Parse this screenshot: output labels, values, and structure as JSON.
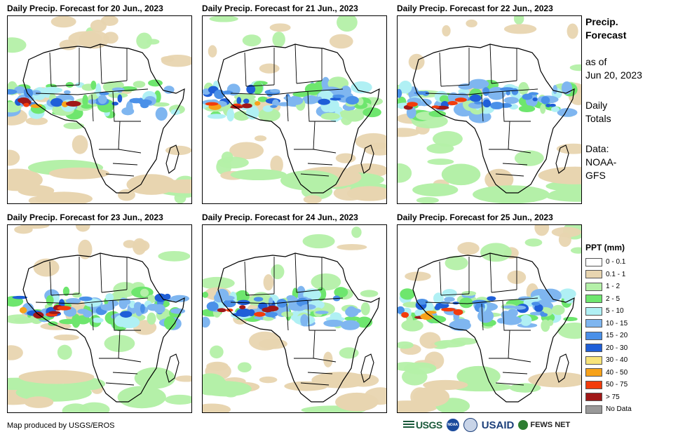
{
  "panels": [
    {
      "title": "Daily Precip. Forecast for 20 Jun., 2023",
      "variant": 0
    },
    {
      "title": "Daily Precip. Forecast for 21 Jun., 2023",
      "variant": 1
    },
    {
      "title": "Daily Precip. Forecast for 22 Jun., 2023",
      "variant": 2
    },
    {
      "title": "Daily Precip. Forecast for 23 Jun., 2023",
      "variant": 3
    },
    {
      "title": "Daily Precip. Forecast for 24 Jun., 2023",
      "variant": 4
    },
    {
      "title": "Daily Precip. Forecast for 25 Jun., 2023",
      "variant": 5
    }
  ],
  "side": {
    "title1": "Precip.",
    "title2": "Forecast",
    "asof1": "as of",
    "asof2": "Jun 20, 2023",
    "daily1": "Daily",
    "daily2": "Totals",
    "data1": "Data:",
    "data2": "NOAA-",
    "data3": "GFS"
  },
  "legend": {
    "title": "PPT (mm)",
    "items": [
      {
        "label": "0 - 0.1",
        "color": "#ffffff"
      },
      {
        "label": "0.1 - 1",
        "color": "#e8d5b0"
      },
      {
        "label": "1 - 2",
        "color": "#b4f0a8"
      },
      {
        "label": "2 - 5",
        "color": "#6ee66e"
      },
      {
        "label": "5 - 10",
        "color": "#b0f0f4"
      },
      {
        "label": "10 - 15",
        "color": "#7fb6f0"
      },
      {
        "label": "15 - 20",
        "color": "#4a90e8"
      },
      {
        "label": "20 - 30",
        "color": "#1f5fd8"
      },
      {
        "label": "30 - 40",
        "color": "#f8e47a"
      },
      {
        "label": "40 - 50",
        "color": "#f7a21a"
      },
      {
        "label": "50 - 75",
        "color": "#f23c0c"
      },
      {
        "label": "> 75",
        "color": "#a01818"
      },
      {
        "label": "No Data",
        "color": "#999999"
      }
    ]
  },
  "footer": {
    "credit": "Map produced by USGS/EROS",
    "logo_usgs": "USGS",
    "logo_usaid": "USAID",
    "logo_fews": "FEWS NET",
    "logo_noaa": "NOAA"
  }
}
